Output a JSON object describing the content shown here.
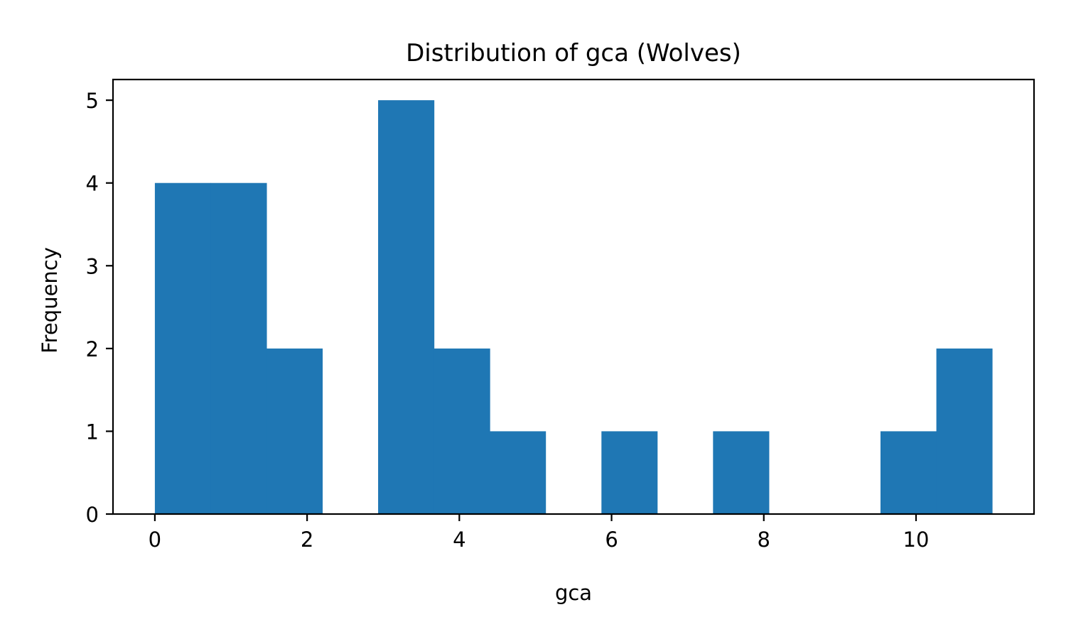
{
  "chart_data": {
    "type": "bar",
    "title": "Distribution of gca (Wolves)",
    "xlabel": "gca",
    "ylabel": "Frequency",
    "xlim": [
      -0.55,
      11.55
    ],
    "ylim": [
      0,
      5.25
    ],
    "xticks": [
      0,
      2,
      4,
      6,
      8,
      10
    ],
    "yticks": [
      0,
      1,
      2,
      3,
      4,
      5
    ],
    "grid": false,
    "legend": "none",
    "color": "#1f77b4",
    "bin_edges": [
      0,
      0.733,
      1.467,
      2.2,
      2.933,
      3.667,
      4.4,
      5.133,
      5.867,
      6.6,
      7.333,
      8.067,
      8.8,
      9.533,
      10.267,
      11
    ],
    "values": [
      4,
      4,
      2,
      0,
      5,
      2,
      1,
      0,
      1,
      0,
      1,
      0,
      0,
      1,
      2
    ]
  }
}
